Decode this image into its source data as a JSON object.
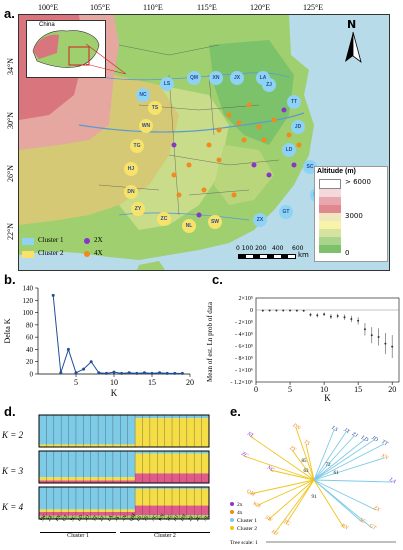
{
  "panels": {
    "a": "a.",
    "b": "b.",
    "c": "c.",
    "d": "d.",
    "e": "e."
  },
  "map": {
    "top_lon": [
      "100°E",
      "105°E",
      "110°E",
      "115°E",
      "120°E",
      "125°E"
    ],
    "left_lat": [
      "34°N",
      "30°N",
      "26°N",
      "22°N"
    ],
    "inset_label": "China",
    "north": "N",
    "altitude_title": "Altitude (m)",
    "altitude_labels": [
      "> 6000",
      "3000",
      "0"
    ],
    "scale_labels": [
      "0 100 200",
      "400",
      "600"
    ],
    "scale_unit": "km",
    "legend_cluster1": "Cluster 1",
    "legend_cluster2": "Cluster 2",
    "legend_2x": "2X",
    "legend_4x": "4X",
    "sites": [
      {
        "code": "LS",
        "c": "b"
      },
      {
        "code": "QM",
        "c": "b"
      },
      {
        "code": "XN",
        "c": "b"
      },
      {
        "code": "JX",
        "c": "b"
      },
      {
        "code": "LA",
        "c": "b"
      },
      {
        "code": "ZJ",
        "c": "b"
      },
      {
        "code": "NC",
        "c": "b"
      },
      {
        "code": "TT",
        "c": "b"
      },
      {
        "code": "TS",
        "c": "y"
      },
      {
        "code": "JD",
        "c": "b"
      },
      {
        "code": "WN",
        "c": "y"
      },
      {
        "code": "LD",
        "c": "b"
      },
      {
        "code": "TG",
        "c": "y"
      },
      {
        "code": "SC",
        "c": "b"
      },
      {
        "code": "HJ",
        "c": "y"
      },
      {
        "code": "DN",
        "c": "y"
      },
      {
        "code": "PN",
        "c": "b"
      },
      {
        "code": "ZY",
        "c": "y"
      },
      {
        "code": "ZC",
        "c": "y"
      },
      {
        "code": "NL",
        "c": "y"
      },
      {
        "code": "SW",
        "c": "y"
      },
      {
        "code": "GT",
        "c": "b"
      },
      {
        "code": "ZX",
        "c": "b"
      }
    ]
  },
  "chart_data": [
    {
      "type": "line",
      "panel": "b",
      "xlabel": "K",
      "ylabel": "Delta K",
      "x": [
        2,
        3,
        4,
        5,
        6,
        7,
        8,
        9,
        10,
        11,
        12,
        13,
        14,
        15,
        16,
        17,
        18,
        19
      ],
      "values": [
        128,
        2,
        40,
        2,
        8,
        20,
        2,
        1,
        3,
        1,
        2,
        1,
        2,
        1,
        2,
        1,
        1,
        1
      ],
      "xlim": [
        0,
        20
      ],
      "ylim": [
        0,
        140
      ],
      "xticks": [
        5,
        10,
        15,
        20
      ],
      "yticks": [
        0,
        20,
        40,
        60,
        80,
        100,
        120,
        140
      ]
    },
    {
      "type": "scatter",
      "panel": "c",
      "xlabel": "K",
      "ylabel": "Mean of est. Ln prob of data",
      "x": [
        1,
        2,
        3,
        4,
        5,
        6,
        7,
        8,
        9,
        10,
        11,
        12,
        13,
        14,
        15,
        16,
        17,
        18,
        19,
        20
      ],
      "values": [
        -10000,
        -8000,
        -8000,
        -9000,
        -9000,
        -10000,
        -12000,
        -80000,
        -90000,
        -70000,
        -110000,
        -100000,
        -120000,
        -150000,
        -180000,
        -320000,
        -420000,
        -450000,
        -560000,
        -610000
      ],
      "xlim": [
        0,
        21
      ],
      "ylim": [
        -1200000,
        200000
      ],
      "xticks": [
        0,
        5,
        10,
        15,
        20
      ],
      "ytick_labels": [
        "2×10⁵",
        "0",
        "- 2×10⁵",
        "- 4×10⁵",
        "- 6×10⁵",
        "- 8×10⁵",
        "- 1×10⁶",
        "- 1.2×10⁶"
      ]
    }
  ],
  "structure": {
    "rows": [
      "K = 2",
      "K = 3",
      "K = 4"
    ],
    "populations": [
      "SW",
      "ZX",
      "PN",
      "GT",
      "SC",
      "LD",
      "JD",
      "TT",
      "ZJ",
      "LA",
      "JX",
      "XN",
      "QM",
      "LS",
      "TS",
      "NC",
      "WN",
      "TG",
      "HJ",
      "DN",
      "ZY",
      "ZC",
      "NL"
    ],
    "cluster1": "Cluster 1",
    "cluster2": "Cluster 2"
  },
  "tree": {
    "tips": [
      "NL",
      "ZC",
      "NC",
      "SW",
      "QM",
      "WN",
      "DN",
      "TS",
      "ZY",
      "TG",
      "HJ",
      "LS",
      "JX",
      "ZJ",
      "LD",
      "JD",
      "TT",
      "XN",
      "LA",
      "ZX",
      "SC",
      "GT",
      "PN"
    ],
    "support": [
      "85",
      "63",
      "72",
      "61",
      "91"
    ],
    "legend": [
      "2x",
      "4x",
      "Cluster 1",
      "Cluster 2"
    ],
    "scale": "Tree scale: 1"
  }
}
